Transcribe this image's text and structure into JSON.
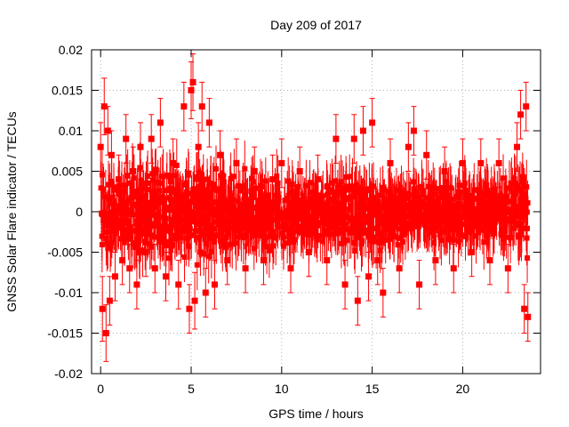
{
  "chart_data": {
    "type": "scatter",
    "title": "Day 209 of 2017",
    "xlabel": "GPS time / hours",
    "ylabel": "GNSS Solar Flare indicator / TECUs",
    "xlim": [
      -0.5,
      24.3
    ],
    "ylim": [
      -0.02,
      0.02
    ],
    "xticks": [
      0,
      5,
      10,
      15,
      20
    ],
    "xtick_labels": [
      "0",
      "5",
      "10",
      "15",
      "20"
    ],
    "yticks": [
      -0.02,
      -0.015,
      -0.01,
      -0.005,
      0,
      0.005,
      0.01,
      0.015,
      0.02
    ],
    "ytick_labels": [
      "-0.02",
      "-0.015",
      "-0.01",
      "-0.005",
      "0",
      "0.005",
      "0.01",
      "0.015",
      "0.02"
    ],
    "grid": true,
    "legend": "none",
    "series": [
      {
        "color": "#ff0000",
        "marker": "square",
        "error_bars": true,
        "x": [
          0.0,
          0.1,
          0.2,
          0.3,
          0.4,
          0.5,
          0.6,
          0.8,
          1.0,
          1.2,
          1.4,
          1.6,
          1.8,
          2.0,
          2.2,
          2.5,
          2.8,
          3.0,
          3.3,
          3.6,
          4.0,
          4.3,
          4.6,
          4.9,
          5.0,
          5.1,
          5.2,
          5.4,
          5.6,
          5.8,
          6.0,
          6.3,
          6.6,
          7.0,
          7.5,
          8.0,
          8.5,
          9.0,
          9.5,
          10.0,
          10.5,
          11.0,
          11.5,
          12.0,
          12.5,
          13.0,
          13.5,
          14.0,
          14.2,
          14.5,
          14.8,
          15.0,
          15.3,
          15.6,
          16.0,
          16.5,
          17.0,
          17.3,
          17.6,
          18.0,
          18.5,
          19.0,
          19.5,
          20.0,
          20.5,
          21.0,
          21.5,
          22.0,
          22.5,
          23.0,
          23.2,
          23.4,
          23.5,
          23.6
        ],
        "y": [
          0.008,
          -0.012,
          0.013,
          -0.015,
          0.01,
          -0.011,
          0.007,
          -0.008,
          0.004,
          -0.006,
          0.009,
          -0.007,
          0.005,
          -0.009,
          0.008,
          -0.005,
          0.009,
          -0.007,
          0.011,
          -0.008,
          0.006,
          -0.009,
          0.013,
          -0.012,
          0.015,
          0.016,
          -0.011,
          0.008,
          0.013,
          -0.01,
          0.011,
          -0.009,
          0.007,
          -0.006,
          0.006,
          -0.007,
          0.005,
          -0.006,
          0.004,
          0.006,
          -0.007,
          0.005,
          -0.005,
          0.004,
          -0.006,
          0.009,
          -0.009,
          0.009,
          -0.011,
          0.01,
          -0.008,
          0.011,
          -0.006,
          -0.01,
          0.006,
          -0.007,
          0.008,
          0.01,
          -0.009,
          0.007,
          -0.006,
          0.005,
          -0.007,
          0.006,
          -0.005,
          0.006,
          -0.006,
          0.006,
          -0.007,
          0.008,
          0.012,
          -0.012,
          0.013,
          -0.013
        ],
        "errors": [
          0.003,
          0.004,
          0.0035,
          0.0035,
          0.003,
          0.003,
          0.003,
          0.003,
          0.003,
          0.003,
          0.003,
          0.003,
          0.003,
          0.003,
          0.003,
          0.003,
          0.003,
          0.003,
          0.003,
          0.003,
          0.003,
          0.003,
          0.003,
          0.003,
          0.0035,
          0.0035,
          0.0035,
          0.003,
          0.003,
          0.003,
          0.003,
          0.003,
          0.003,
          0.003,
          0.003,
          0.003,
          0.003,
          0.003,
          0.003,
          0.003,
          0.003,
          0.003,
          0.003,
          0.003,
          0.003,
          0.003,
          0.003,
          0.003,
          0.003,
          0.003,
          0.003,
          0.003,
          0.003,
          0.003,
          0.003,
          0.003,
          0.003,
          0.003,
          0.003,
          0.003,
          0.003,
          0.003,
          0.003,
          0.003,
          0.003,
          0.003,
          0.003,
          0.003,
          0.003,
          0.003,
          0.003,
          0.003,
          0.003,
          0.003
        ],
        "envelope": {
          "x": [
            0,
            1,
            2,
            3,
            4,
            5,
            6,
            7,
            8,
            9,
            10,
            11,
            12,
            13,
            14,
            15,
            16,
            17,
            18,
            19,
            20,
            21,
            22,
            23,
            23.6
          ],
          "upper": [
            0.007,
            0.007,
            0.007,
            0.007,
            0.007,
            0.008,
            0.007,
            0.006,
            0.006,
            0.006,
            0.005,
            0.005,
            0.005,
            0.005,
            0.006,
            0.006,
            0.005,
            0.005,
            0.005,
            0.005,
            0.005,
            0.005,
            0.005,
            0.006,
            0.007
          ],
          "lower": [
            -0.007,
            -0.007,
            -0.007,
            -0.007,
            -0.007,
            -0.008,
            -0.007,
            -0.006,
            -0.006,
            -0.006,
            -0.005,
            -0.005,
            -0.005,
            -0.005,
            -0.006,
            -0.006,
            -0.005,
            -0.005,
            -0.005,
            -0.005,
            -0.005,
            -0.005,
            -0.005,
            -0.006,
            -0.007
          ]
        }
      }
    ]
  }
}
